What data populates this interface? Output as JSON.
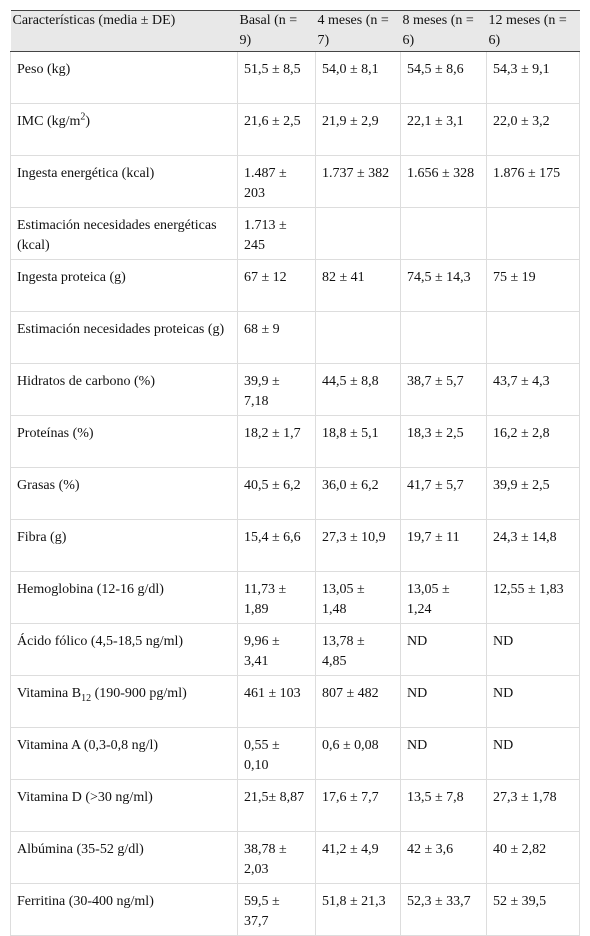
{
  "table": {
    "header": [
      "Características (media ± DE)",
      "Basal (n = 9)",
      "4 meses (n = 7)",
      "8 meses (n = 6)",
      "12 meses (n = 6)"
    ],
    "rows": [
      {
        "label": "Peso (kg)",
        "values": [
          "51,5 ± 8,5",
          "54,0 ± 8,1",
          "54,5 ± 8,6",
          "54,3 ± 9,1"
        ]
      },
      {
        "label": [
          "IMC (kg/m",
          "2",
          ")"
        ],
        "label_format": "sup",
        "values": [
          "21,6 ± 2,5",
          "21,9 ± 2,9",
          "22,1 ± 3,1",
          "22,0 ± 3,2"
        ]
      },
      {
        "label": "Ingesta energética (kcal)",
        "values": [
          "1.487 ± 203",
          "1.737 ± 382",
          "1.656 ± 328",
          "1.876 ± 175"
        ]
      },
      {
        "label": "Estimación necesidades energéticas (kcal)",
        "values": [
          "1.713 ± 245",
          null,
          null,
          null
        ]
      },
      {
        "label": "Ingesta proteica (g)",
        "values": [
          "67 ± 12",
          "82 ± 41",
          "74,5 ± 14,3",
          "75 ± 19"
        ]
      },
      {
        "label": "Estimación necesidades proteicas (g)",
        "values": [
          "68 ± 9",
          null,
          null,
          null
        ]
      },
      {
        "label": "Hidratos de carbono (%)",
        "values": [
          "39,9 ± 7,18",
          "44,5 ± 8,8",
          "38,7 ± 5,7",
          "43,7 ± 4,3"
        ]
      },
      {
        "label": "Proteínas (%)",
        "values": [
          "18,2 ± 1,7",
          "18,8 ± 5,1",
          "18,3 ± 2,5",
          "16,2 ± 2,8"
        ]
      },
      {
        "label": "Grasas (%)",
        "values": [
          "40,5 ± 6,2",
          "36,0 ± 6,2",
          "41,7 ± 5,7",
          "39,9 ± 2,5"
        ]
      },
      {
        "label": "Fibra (g)",
        "values": [
          "15,4 ± 6,6",
          "27,3 ± 10,9",
          "19,7 ± 11",
          "24,3 ± 14,8"
        ]
      },
      {
        "label": "Hemoglobina (12-16 g/dl)",
        "values": [
          "11,73 ± 1,89",
          "13,05 ± 1,48",
          "13,05 ± 1,24",
          "12,55 ± 1,83"
        ]
      },
      {
        "label": "Ácido fólico (4,5-18,5 ng/ml)",
        "values": [
          "9,96 ± 3,41",
          "13,78 ± 4,85",
          "ND",
          "ND"
        ]
      },
      {
        "label": [
          "Vitamina B",
          "12",
          " (190-900 pg/ml)"
        ],
        "label_format": "sub",
        "values": [
          "461 ± 103",
          "807 ± 482",
          "ND",
          "ND"
        ]
      },
      {
        "label": "Vitamina A (0,3-0,8 ng/l)",
        "values": [
          "0,55 ± 0,10",
          "0,6 ± 0,08",
          "ND",
          "ND"
        ]
      },
      {
        "label": "Vitamina D (>30 ng/ml)",
        "values": [
          "21,5± 8,87",
          "17,6 ± 7,7",
          "13,5 ± 7,8",
          "27,3 ± 1,78"
        ]
      },
      {
        "label": "Albúmina (35-52 g/dl)",
        "values": [
          "38,78 ± 2,03",
          "41,2 ± 4,9",
          "42 ± 3,6",
          "40 ± 2,82"
        ]
      },
      {
        "label": "Ferritina (30-400 ng/ml)",
        "values": [
          "59,5 ± 37,7",
          "51,8 ± 21,3",
          "52,3 ± 33,7",
          "52 ± 39,5"
        ]
      }
    ]
  }
}
